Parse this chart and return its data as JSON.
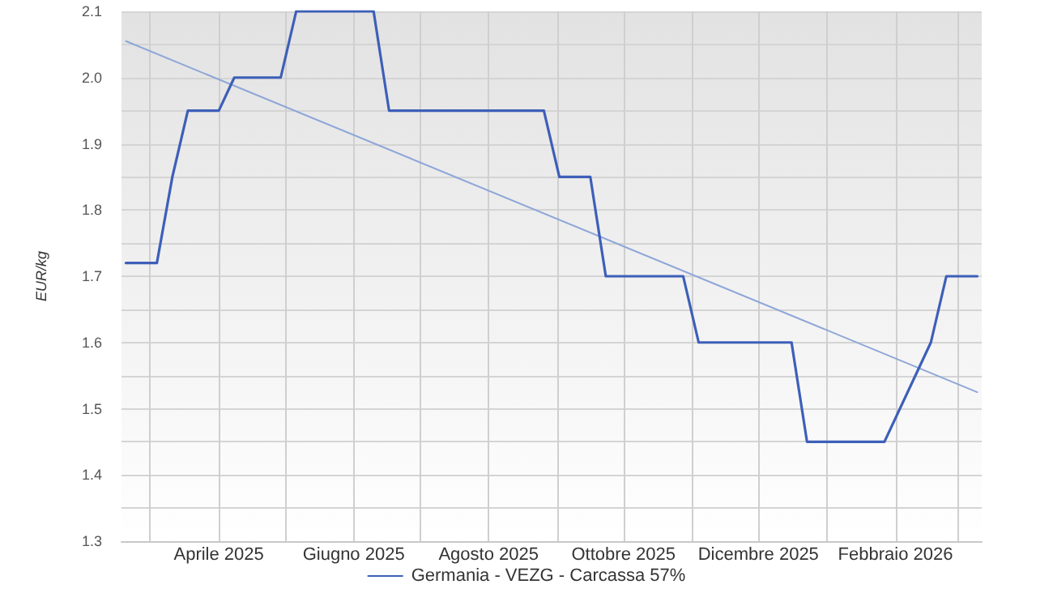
{
  "chart_data": {
    "type": "line",
    "ylabel": "EUR/kg",
    "xlim": [
      "2025-02-16",
      "2026-03-12"
    ],
    "xticks": [
      {
        "value": "2025-03-01",
        "label": null
      },
      {
        "value": "2025-04-01",
        "label": "Aprile 2025"
      },
      {
        "value": "2025-05-01",
        "label": null
      },
      {
        "value": "2025-06-01",
        "label": "Giugno 2025"
      },
      {
        "value": "2025-07-01",
        "label": null
      },
      {
        "value": "2025-08-01",
        "label": "Agosto 2025"
      },
      {
        "value": "2025-09-01",
        "label": null
      },
      {
        "value": "2025-10-01",
        "label": "Ottobre 2025"
      },
      {
        "value": "2025-11-01",
        "label": null
      },
      {
        "value": "2025-12-01",
        "label": "Dicembre 2025"
      },
      {
        "value": "2026-01-01",
        "label": null
      },
      {
        "value": "2026-02-01",
        "label": "Febbraio 2026"
      },
      {
        "value": "2026-03-01",
        "label": null
      }
    ],
    "ylim": [
      1.3,
      2.1
    ],
    "yticks": [
      1.3,
      {
        "value": 1.35,
        "label": null
      },
      1.4,
      {
        "value": 1.45,
        "label": null
      },
      1.5,
      {
        "value": 1.55,
        "label": null
      },
      1.6,
      {
        "value": 1.65,
        "label": null
      },
      1.7,
      {
        "value": 1.75,
        "label": null
      },
      1.8,
      {
        "value": 1.85,
        "label": null
      },
      1.9,
      {
        "value": 1.95,
        "label": null
      },
      {
        "value": 2,
        "label": "2.0"
      },
      {
        "value": 2.05,
        "label": null
      },
      2.1
    ],
    "series": [
      {
        "name": "Germania - VEZG - Carcassa 57%",
        "color": "#3d5fb8",
        "x": [
          "2025-02-18",
          "2025-03-04",
          "2025-03-11",
          "2025-03-18",
          "2025-04-01",
          "2025-04-08",
          "2025-04-29",
          "2025-05-06",
          "2025-06-10",
          "2025-06-17",
          "2025-08-26",
          "2025-09-02",
          "2025-09-16",
          "2025-09-23",
          "2025-10-28",
          "2025-11-04",
          "2025-12-16",
          "2025-12-23",
          "2026-01-27",
          "2026-02-17",
          "2026-02-24",
          "2026-03-10"
        ],
        "values": [
          1.72,
          1.72,
          1.85,
          1.95,
          1.95,
          2.0,
          2.0,
          2.1,
          2.1,
          1.95,
          1.95,
          1.85,
          1.85,
          1.7,
          1.7,
          1.6,
          1.6,
          1.45,
          1.45,
          1.6,
          1.7,
          1.7
        ]
      },
      {
        "type": "line",
        "color": "#8ea6d8",
        "x": [
          "2025-02-18",
          "2026-03-10"
        ],
        "values": [
          2.055,
          1.525
        ]
      }
    ],
    "grid": true,
    "legend": "bottom",
    "marker": "none",
    "line_style": "solid"
  }
}
